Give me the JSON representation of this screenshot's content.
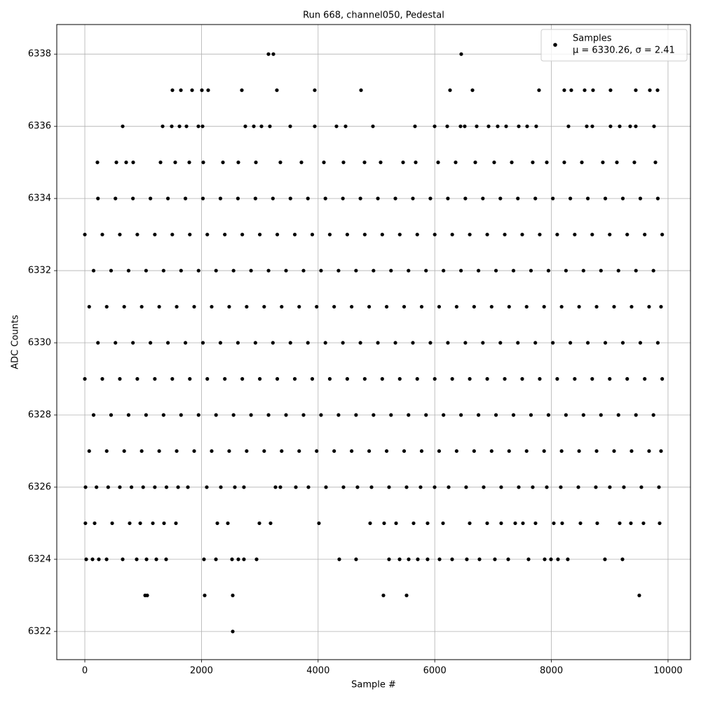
{
  "chart_data": {
    "type": "scatter",
    "title": "Run 668, channel050, Pedestal",
    "x_label": "Sample #",
    "y_label": "ADC Counts",
    "xlim": [
      -481,
      10385
    ],
    "ylim": [
      6321.22,
      6338.82
    ],
    "xticks": [
      0,
      2000,
      4000,
      6000,
      8000,
      10000
    ],
    "yticks": [
      6322,
      6324,
      6326,
      6328,
      6330,
      6332,
      6334,
      6336,
      6338
    ],
    "grid": true,
    "legend": "upper right",
    "legend_subtitle": "μ = 6330.26, σ = 2.41",
    "series": [
      {
        "name": "Samples",
        "color": "#000000",
        "x": [
          3149,
          3233,
          6454,
          2536,
          1034,
          1070,
          2055,
          2536,
          5120,
          5517,
          9507,
          1502,
          1647,
          1839,
          2007,
          2115,
          2692,
          3293,
          3942,
          4736,
          6262,
          6647,
          7788,
          8221,
          8341,
          8570,
          8714,
          9014,
          9447,
          9688,
          9820,
          649,
          1334,
          1490,
          1623,
          1743,
          1947,
          2019,
          2752,
          2897,
          3029,
          3173,
          3522,
          3942,
          4315,
          4471,
          4940,
          5661,
          5998,
          6214,
          6442,
          6514,
          6719,
          6923,
          7079,
          7224,
          7440,
          7584,
          7740,
          8293,
          8606,
          8702,
          9014,
          9171,
          9351,
          9447,
          9760,
          216,
          541,
          709,
          829,
          1298,
          1550,
          1791,
          2031,
          2368,
          2632,
          2933,
          3353,
          3714,
          4099,
          4435,
          4796,
          5072,
          5457,
          5673,
          6058,
          6358,
          6695,
          7019,
          7320,
          7680,
          7921,
          8221,
          8522,
          8882,
          9123,
          9423,
          9784,
          12,
          200,
          400,
          600,
          800,
          1000,
          1200,
          1400,
          1599,
          1767,
          2091,
          2332,
          2572,
          2728,
          3269,
          3353,
          3618,
          3834,
          4135,
          4435,
          4675,
          4916,
          5216,
          5517,
          5757,
          5998,
          6238,
          6538,
          6839,
          7139,
          7440,
          7680,
          7921,
          8161,
          8462,
          8762,
          9002,
          9243,
          9543,
          9844,
          10,
          168,
          469,
          769,
          950,
          1166,
          1358,
          1562,
          2272,
          2452,
          2993,
          3185,
          4014,
          4892,
          5132,
          5337,
          5637,
          5877,
          6142,
          6599,
          6899,
          7139,
          7380,
          7512,
          7728,
          8041,
          8185,
          8498,
          8786,
          9171,
          9363,
          9579,
          9856,
          24,
          132,
          240,
          373,
          649,
          889,
          1058,
          1226,
          1394,
          2043,
          2248,
          2524,
          2632,
          2728,
          2945,
          4363,
          4651,
          5216,
          5397,
          5553,
          5709,
          5877,
          6082,
          6298,
          6550,
          6767,
          7031,
          7260,
          7608,
          7885,
          7993,
          8113,
          8281,
          8918,
          9219,
          0,
          300,
          600,
          900,
          1200,
          1500,
          1800,
          2100,
          2400,
          2700,
          3000,
          3300,
          3600,
          3900,
          4200,
          4500,
          4800,
          5100,
          5400,
          5700,
          6000,
          6300,
          6600,
          6900,
          7200,
          7500,
          7800,
          8100,
          8400,
          8700,
          9000,
          9300,
          9600,
          9900,
          150,
          450,
          750,
          1050,
          1350,
          1650,
          1950,
          2250,
          2550,
          2850,
          3150,
          3450,
          3750,
          4050,
          4350,
          4650,
          4950,
          5250,
          5550,
          5850,
          6150,
          6450,
          6750,
          7050,
          7350,
          7650,
          7950,
          8250,
          8550,
          8850,
          9150,
          9450,
          9750,
          75,
          375,
          675,
          975,
          1275,
          1575,
          1875,
          2175,
          2475,
          2775,
          3075,
          3375,
          3675,
          3975,
          4275,
          4575,
          4875,
          5175,
          5475,
          5775,
          6075,
          6375,
          6675,
          6975,
          7275,
          7575,
          7875,
          8175,
          8475,
          8775,
          9075,
          9375,
          9675,
          9880,
          225,
          525,
          825,
          1125,
          1425,
          1725,
          2025,
          2325,
          2625,
          2925,
          3225,
          3525,
          3825,
          4125,
          4425,
          4725,
          5025,
          5325,
          5625,
          5925,
          6225,
          6525,
          6825,
          7125,
          7425,
          7725,
          8025,
          8325,
          8625,
          8925,
          9225,
          9525,
          9825,
          0,
          300,
          600,
          900,
          1200,
          1500,
          1800,
          2100,
          2400,
          2700,
          3000,
          3300,
          3600,
          3900,
          4200,
          4500,
          4800,
          5100,
          5400,
          5700,
          6000,
          6300,
          6600,
          6900,
          7200,
          7500,
          7800,
          8100,
          8400,
          8700,
          9000,
          9300,
          9600,
          9900,
          150,
          450,
          750,
          1050,
          1350,
          1650,
          1950,
          2250,
          2550,
          2850,
          3150,
          3450,
          3750,
          4050,
          4350,
          4650,
          4950,
          5250,
          5550,
          5850,
          6150,
          6450,
          6750,
          7050,
          7350,
          7650,
          7950,
          8250,
          8550,
          8850,
          9150,
          9450,
          9750,
          75,
          375,
          675,
          975,
          1275,
          1575,
          1875,
          2175,
          2475,
          2775,
          3075,
          3375,
          3675,
          3975,
          4275,
          4575,
          4875,
          5175,
          5475,
          5775,
          6075,
          6375,
          6675,
          6975,
          7275,
          7575,
          7875,
          8175,
          8475,
          8775,
          9075,
          9375,
          9675,
          9880,
          225,
          525,
          825,
          1125,
          1425,
          1725,
          2025,
          2325,
          2625,
          2925,
          3225,
          3525,
          3825,
          4125,
          4425,
          4725,
          5025,
          5325,
          5625,
          5925,
          6225,
          6525,
          6825,
          7125,
          7425,
          7725,
          8025,
          8325,
          8625,
          8925,
          9225,
          9525,
          9825
        ],
        "values": [
          6338,
          6338,
          6338,
          6322,
          6323,
          6323,
          6323,
          6323,
          6323,
          6323,
          6323,
          6337,
          6337,
          6337,
          6337,
          6337,
          6337,
          6337,
          6337,
          6337,
          6337,
          6337,
          6337,
          6337,
          6337,
          6337,
          6337,
          6337,
          6337,
          6337,
          6337,
          6336,
          6336,
          6336,
          6336,
          6336,
          6336,
          6336,
          6336,
          6336,
          6336,
          6336,
          6336,
          6336,
          6336,
          6336,
          6336,
          6336,
          6336,
          6336,
          6336,
          6336,
          6336,
          6336,
          6336,
          6336,
          6336,
          6336,
          6336,
          6336,
          6336,
          6336,
          6336,
          6336,
          6336,
          6336,
          6336,
          6335,
          6335,
          6335,
          6335,
          6335,
          6335,
          6335,
          6335,
          6335,
          6335,
          6335,
          6335,
          6335,
          6335,
          6335,
          6335,
          6335,
          6335,
          6335,
          6335,
          6335,
          6335,
          6335,
          6335,
          6335,
          6335,
          6335,
          6335,
          6335,
          6335,
          6335,
          6335,
          6326,
          6326,
          6326,
          6326,
          6326,
          6326,
          6326,
          6326,
          6326,
          6326,
          6326,
          6326,
          6326,
          6326,
          6326,
          6326,
          6326,
          6326,
          6326,
          6326,
          6326,
          6326,
          6326,
          6326,
          6326,
          6326,
          6326,
          6326,
          6326,
          6326,
          6326,
          6326,
          6326,
          6326,
          6326,
          6326,
          6326,
          6326,
          6326,
          6326,
          6325,
          6325,
          6325,
          6325,
          6325,
          6325,
          6325,
          6325,
          6325,
          6325,
          6325,
          6325,
          6325,
          6325,
          6325,
          6325,
          6325,
          6325,
          6325,
          6325,
          6325,
          6325,
          6325,
          6325,
          6325,
          6325,
          6325,
          6325,
          6325,
          6325,
          6325,
          6325,
          6325,
          6324,
          6324,
          6324,
          6324,
          6324,
          6324,
          6324,
          6324,
          6324,
          6324,
          6324,
          6324,
          6324,
          6324,
          6324,
          6324,
          6324,
          6324,
          6324,
          6324,
          6324,
          6324,
          6324,
          6324,
          6324,
          6324,
          6324,
          6324,
          6324,
          6324,
          6324,
          6324,
          6324,
          6324,
          6324,
          6333,
          6333,
          6333,
          6333,
          6333,
          6333,
          6333,
          6333,
          6333,
          6333,
          6333,
          6333,
          6333,
          6333,
          6333,
          6333,
          6333,
          6333,
          6333,
          6333,
          6333,
          6333,
          6333,
          6333,
          6333,
          6333,
          6333,
          6333,
          6333,
          6333,
          6333,
          6333,
          6333,
          6333,
          6332,
          6332,
          6332,
          6332,
          6332,
          6332,
          6332,
          6332,
          6332,
          6332,
          6332,
          6332,
          6332,
          6332,
          6332,
          6332,
          6332,
          6332,
          6332,
          6332,
          6332,
          6332,
          6332,
          6332,
          6332,
          6332,
          6332,
          6332,
          6332,
          6332,
          6332,
          6332,
          6332,
          6331,
          6331,
          6331,
          6331,
          6331,
          6331,
          6331,
          6331,
          6331,
          6331,
          6331,
          6331,
          6331,
          6331,
          6331,
          6331,
          6331,
          6331,
          6331,
          6331,
          6331,
          6331,
          6331,
          6331,
          6331,
          6331,
          6331,
          6331,
          6331,
          6331,
          6331,
          6331,
          6331,
          6331,
          6330,
          6330,
          6330,
          6330,
          6330,
          6330,
          6330,
          6330,
          6330,
          6330,
          6330,
          6330,
          6330,
          6330,
          6330,
          6330,
          6330,
          6330,
          6330,
          6330,
          6330,
          6330,
          6330,
          6330,
          6330,
          6330,
          6330,
          6330,
          6330,
          6330,
          6330,
          6330,
          6330,
          6329,
          6329,
          6329,
          6329,
          6329,
          6329,
          6329,
          6329,
          6329,
          6329,
          6329,
          6329,
          6329,
          6329,
          6329,
          6329,
          6329,
          6329,
          6329,
          6329,
          6329,
          6329,
          6329,
          6329,
          6329,
          6329,
          6329,
          6329,
          6329,
          6329,
          6329,
          6329,
          6329,
          6329,
          6328,
          6328,
          6328,
          6328,
          6328,
          6328,
          6328,
          6328,
          6328,
          6328,
          6328,
          6328,
          6328,
          6328,
          6328,
          6328,
          6328,
          6328,
          6328,
          6328,
          6328,
          6328,
          6328,
          6328,
          6328,
          6328,
          6328,
          6328,
          6328,
          6328,
          6328,
          6328,
          6328,
          6327,
          6327,
          6327,
          6327,
          6327,
          6327,
          6327,
          6327,
          6327,
          6327,
          6327,
          6327,
          6327,
          6327,
          6327,
          6327,
          6327,
          6327,
          6327,
          6327,
          6327,
          6327,
          6327,
          6327,
          6327,
          6327,
          6327,
          6327,
          6327,
          6327,
          6327,
          6327,
          6327,
          6327,
          6334,
          6334,
          6334,
          6334,
          6334,
          6334,
          6334,
          6334,
          6334,
          6334,
          6334,
          6334,
          6334,
          6334,
          6334,
          6334,
          6334,
          6334,
          6334,
          6334,
          6334,
          6334,
          6334,
          6334,
          6334,
          6334,
          6334,
          6334,
          6334,
          6334,
          6334,
          6334,
          6334
        ]
      }
    ]
  }
}
